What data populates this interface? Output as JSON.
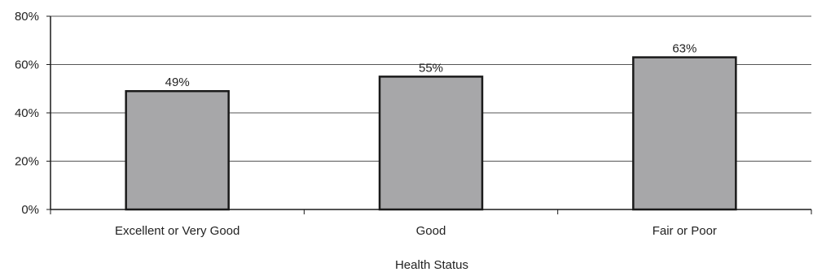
{
  "chart_data": {
    "type": "bar",
    "categories": [
      "Excellent or Very Good",
      "Good",
      "Fair or Poor"
    ],
    "values": [
      49,
      55,
      63
    ],
    "data_labels": [
      "49%",
      "55%",
      "63%"
    ],
    "title": "",
    "xlabel": "Health Status",
    "ylabel": "",
    "ylim": [
      0,
      80
    ],
    "yticks": [
      0,
      20,
      40,
      60,
      80
    ],
    "ytick_labels": [
      "0%",
      "20%",
      "40%",
      "60%",
      "80%"
    ],
    "grid": "horizontal",
    "legend": "none",
    "colors": {
      "bar_fill": "#a7a7a9",
      "bar_stroke": "#1a1a1a",
      "grid": "#555555",
      "axis": "#1a1a1a"
    }
  }
}
